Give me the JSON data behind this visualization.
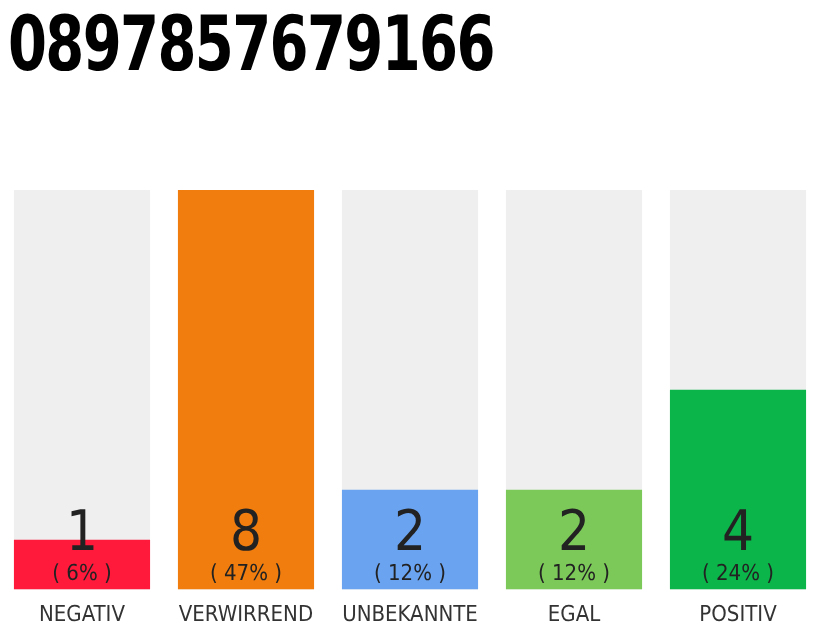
{
  "chart_data": {
    "type": "bar",
    "title": "0897857679166",
    "categories": [
      "NEGATIV",
      "VERWIRREND",
      "UNBEKANNTE",
      "EGAL",
      "POSITIV"
    ],
    "values": [
      1,
      8,
      2,
      2,
      4
    ],
    "colors": [
      "#ff1a3c",
      "#f07d0e",
      "#6aa3f0",
      "#7cc95a",
      "#0bb54a"
    ],
    "data_labels": true,
    "annotations": [
      "( 6% )",
      "( 47% )",
      "( 12% )",
      "( 12% )",
      "( 24% )"
    ],
    "grid": false,
    "legend": false
  }
}
